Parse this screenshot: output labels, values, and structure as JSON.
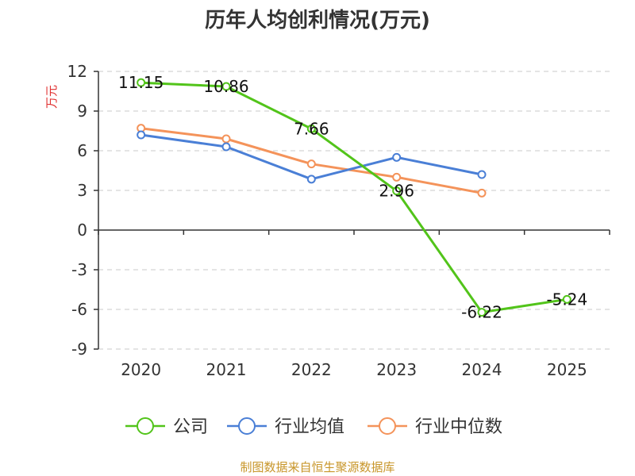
{
  "chart_data": {
    "type": "line",
    "title": "历年人均创利情况(万元)",
    "ylabel": "万元",
    "xlabel": "",
    "categories": [
      "2020",
      "2021",
      "2022",
      "2023",
      "2024",
      "2025"
    ],
    "ylim": [
      -9,
      12
    ],
    "yticks": [
      12,
      9,
      6,
      3,
      0,
      -3,
      -6,
      -9
    ],
    "grid": true,
    "legend_position": "bottom",
    "series": [
      {
        "name": "公司",
        "color": "#52c41a",
        "values": [
          11.15,
          10.86,
          7.66,
          2.96,
          -6.22,
          -5.24
        ],
        "labels": [
          "11.15",
          "10.86",
          "7.66",
          "2.96",
          "-6.22",
          "-5.24"
        ]
      },
      {
        "name": "行业均值",
        "color": "#4a7fd6",
        "values": [
          7.2,
          6.3,
          3.85,
          5.5,
          4.2,
          null
        ]
      },
      {
        "name": "行业中位数",
        "color": "#f4935a",
        "values": [
          7.7,
          6.9,
          5.0,
          4.0,
          2.8,
          null
        ]
      }
    ]
  },
  "footer": {
    "source": "制图数据来自恒生聚源数据库"
  }
}
